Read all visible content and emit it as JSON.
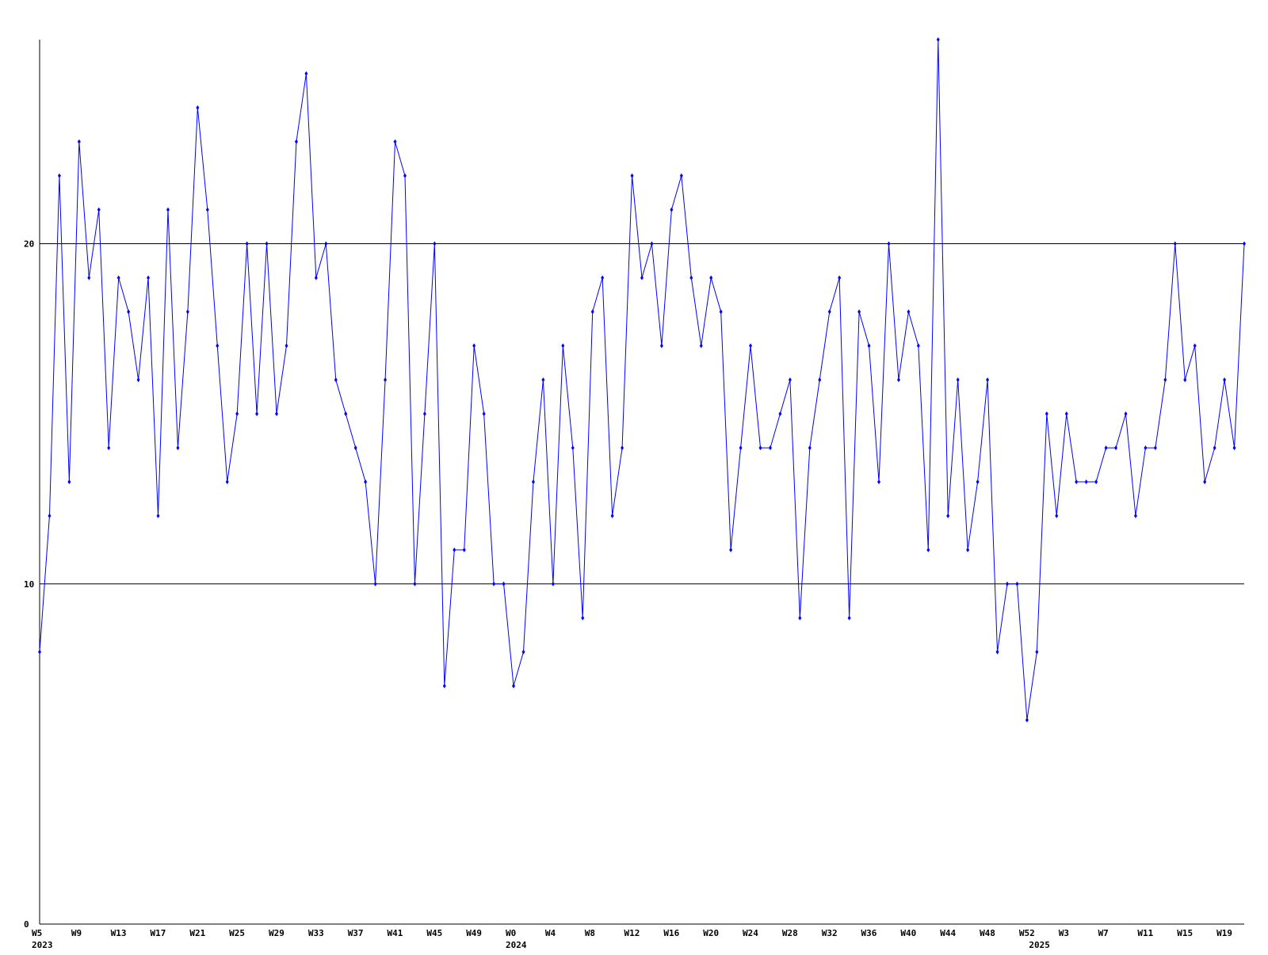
{
  "chart_data": {
    "type": "line",
    "categories": [
      "W5",
      null,
      null,
      null,
      "W9",
      null,
      null,
      null,
      "W13",
      null,
      null,
      null,
      "W17",
      null,
      null,
      null,
      "W21",
      null,
      null,
      null,
      "W25",
      null,
      null,
      null,
      "W29",
      null,
      null,
      null,
      "W33",
      null,
      null,
      null,
      "W37",
      null,
      null,
      null,
      "W41",
      null,
      null,
      null,
      "W45",
      null,
      null,
      null,
      "W49",
      null,
      null,
      null,
      "W0",
      null,
      null,
      null,
      "W4",
      null,
      null,
      null,
      "W8",
      null,
      null,
      null,
      "W12",
      null,
      null,
      null,
      "W16",
      null,
      null,
      null,
      "W20",
      null,
      null,
      null,
      "W24",
      null,
      null,
      null,
      "W28",
      null,
      null,
      null,
      "W32",
      null,
      null,
      null,
      "W36",
      null,
      null,
      null,
      "W40",
      null,
      null,
      null,
      "W44",
      null,
      null,
      null,
      "W48",
      null,
      null,
      null,
      "W52",
      null,
      null,
      null,
      "W3",
      null,
      null,
      null,
      "W7",
      null,
      null,
      null,
      "W11",
      null,
      null,
      null,
      "W15",
      null,
      null,
      null,
      "W19",
      null,
      null
    ],
    "category_years": [
      "2023",
      null,
      null,
      null,
      null,
      null,
      null,
      null,
      null,
      null,
      null,
      null,
      null,
      null,
      null,
      null,
      null,
      null,
      null,
      null,
      null,
      null,
      null,
      null,
      null,
      null,
      null,
      null,
      null,
      null,
      null,
      null,
      null,
      null,
      null,
      null,
      null,
      null,
      null,
      null,
      null,
      null,
      null,
      null,
      null,
      null,
      null,
      null,
      "2024",
      null,
      null,
      null,
      null,
      null,
      null,
      null,
      null,
      null,
      null,
      null,
      null,
      null,
      null,
      null,
      null,
      null,
      null,
      null,
      null,
      null,
      null,
      null,
      null,
      null,
      null,
      null,
      null,
      null,
      null,
      null,
      null,
      null,
      null,
      null,
      null,
      null,
      null,
      null,
      null,
      null,
      null,
      null,
      null,
      null,
      null,
      null,
      null,
      null,
      null,
      null,
      null,
      "2025",
      null,
      null,
      null,
      null,
      null,
      null,
      null,
      null,
      null,
      null,
      null,
      null,
      null,
      null,
      null,
      null,
      null,
      null,
      null,
      null,
      null
    ],
    "series": [
      {
        "color": "#0000ff",
        "values": [
          8,
          12,
          22,
          13,
          23,
          19,
          21,
          14,
          19,
          18,
          16,
          19,
          12,
          21,
          14,
          18,
          24,
          21,
          17,
          13,
          15,
          20,
          15,
          20,
          15,
          17,
          23,
          25,
          19,
          20,
          16,
          15,
          14,
          13,
          10,
          16,
          23,
          22,
          10,
          15,
          20,
          7,
          11,
          11,
          17,
          15,
          10,
          10,
          7,
          8,
          13,
          16,
          10,
          17,
          14,
          9,
          18,
          19,
          12,
          14,
          22,
          19,
          20,
          17,
          21,
          22,
          19,
          17,
          19,
          18,
          11,
          14,
          17,
          14,
          14,
          15,
          16,
          9,
          14,
          16,
          18,
          19,
          9,
          18,
          17,
          13,
          20,
          16,
          18,
          17,
          11,
          26,
          12,
          16,
          11,
          13,
          16,
          8,
          10,
          10,
          6,
          8,
          15,
          12,
          15,
          13,
          13,
          13,
          14,
          14,
          15,
          12,
          14,
          14,
          16,
          20,
          16,
          17,
          13,
          14,
          16,
          14,
          20
        ]
      }
    ],
    "ylim": [
      0,
      26
    ],
    "yticks": [
      0,
      10,
      20
    ],
    "grid": true
  }
}
